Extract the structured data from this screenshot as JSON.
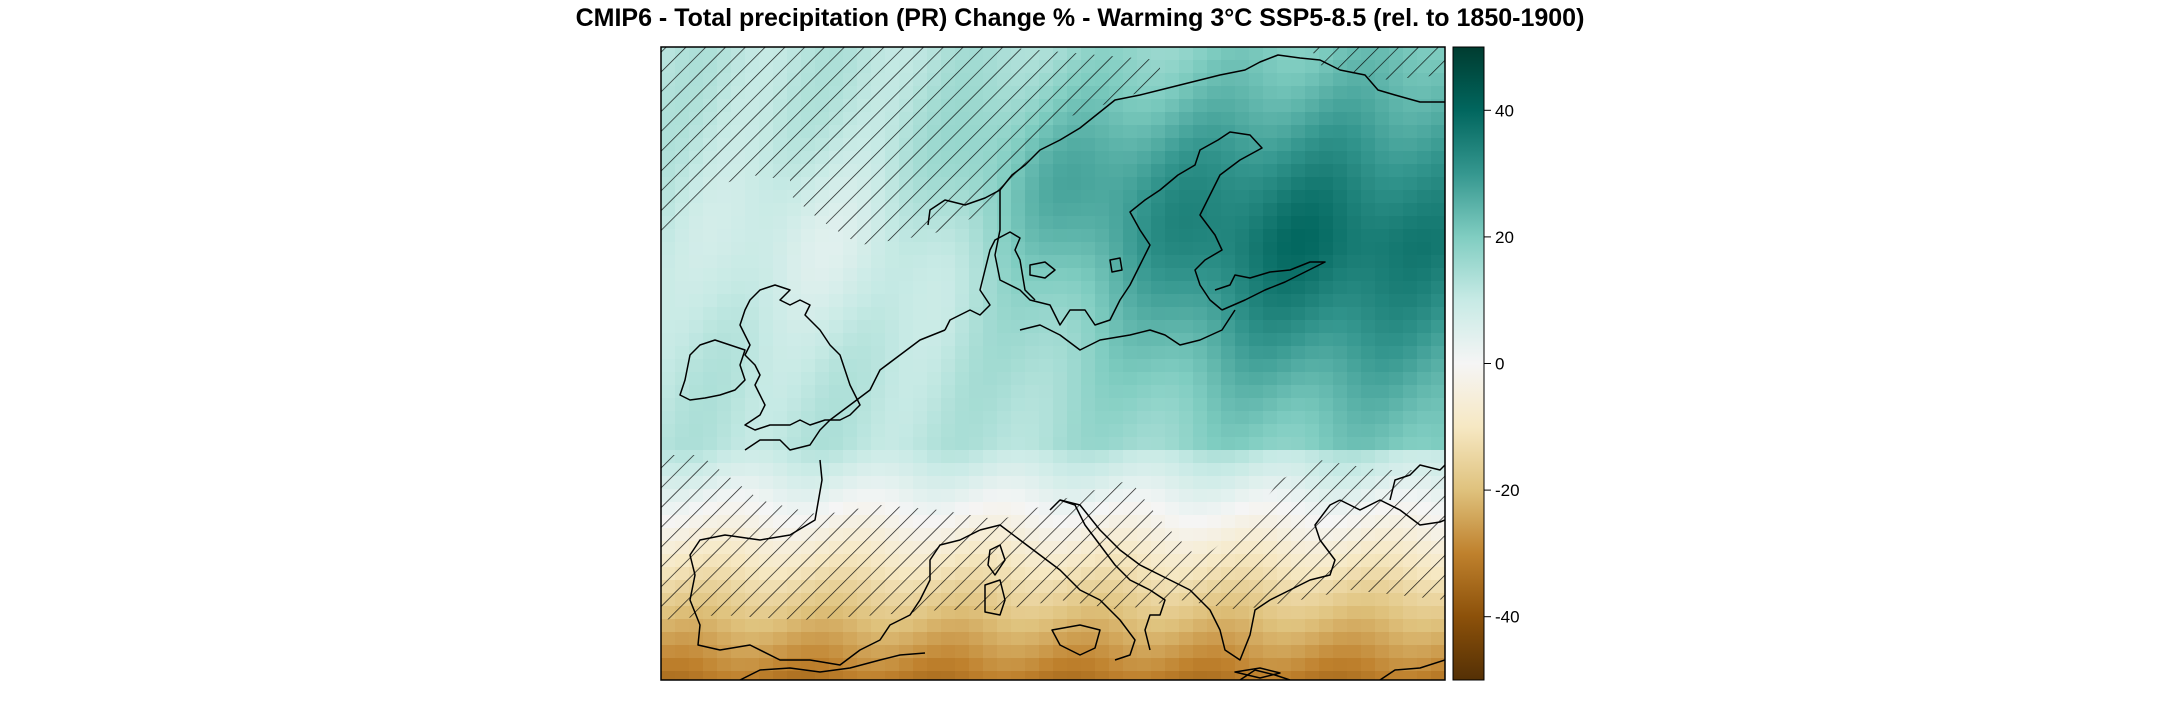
{
  "title": "CMIP6 - Total precipitation (PR) Change % - Warming 3°C SSP5-8.5 (rel. to 1850-1900)",
  "colorbar": {
    "ticks": [
      "40",
      "20",
      "0",
      "-20",
      "-40"
    ],
    "range": [
      -50,
      50
    ],
    "palette": [
      "#543005",
      "#8c510a",
      "#bf812d",
      "#dfc27d",
      "#f6e8c3",
      "#f5f5f5",
      "#c7eae5",
      "#80cdc1",
      "#35978f",
      "#01665e",
      "#003c30"
    ]
  },
  "colors": {
    "coastline": "#000000",
    "hatch": "#000000",
    "frame": "#000000"
  },
  "hatching_meaning": "hatched areas",
  "data_grid_note": ""
}
